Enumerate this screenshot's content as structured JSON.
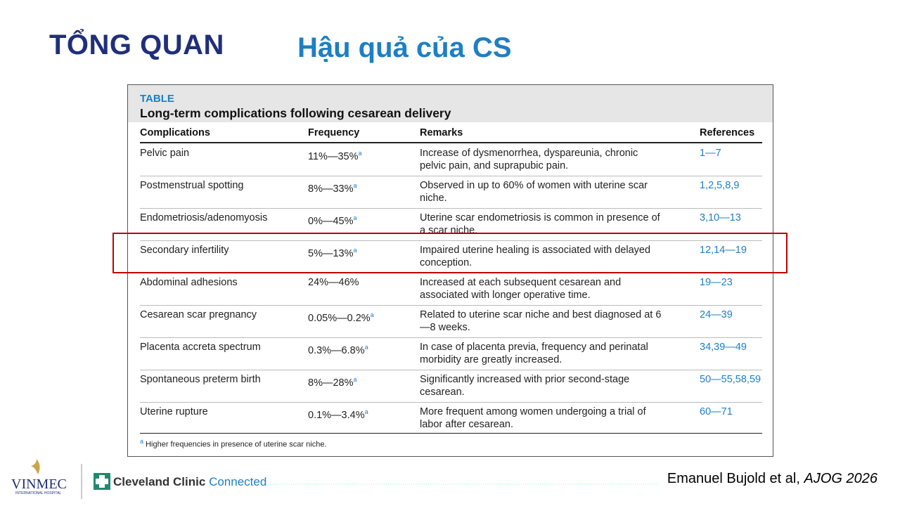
{
  "header": {
    "section": "TỔNG QUAN",
    "title": "Hậu quả của CS"
  },
  "table": {
    "label": "TABLE",
    "caption": "Long-term complications following cesarean delivery",
    "columns": [
      "Complications",
      "Frequency",
      "Remarks",
      "References"
    ],
    "rows": [
      {
        "complication": "Pelvic pain",
        "frequency": "11%—35%",
        "note": "a",
        "remarks": "Increase of dysmenorrhea, dyspareunia, chronic pelvic pain, and suprapubic pain.",
        "references": "1—7"
      },
      {
        "complication": "Postmenstrual spotting",
        "frequency": "8%—33%",
        "note": "a",
        "remarks": "Observed in up to 60% of women with uterine scar niche.",
        "references": "1,2,5,8,9"
      },
      {
        "complication": "Endometriosis/adenomyosis",
        "frequency": "0%—45%",
        "note": "a",
        "remarks": "Uterine scar endometriosis is common in presence of a scar niche.",
        "references": "3,10—13"
      },
      {
        "complication": "Secondary infertility",
        "frequency": "5%—13%",
        "note": "a",
        "remarks": "Impaired uterine healing is associated with delayed conception.",
        "references": "12,14—19"
      },
      {
        "complication": "Abdominal adhesions",
        "frequency": "24%—46%",
        "remarks": "Increased at each subsequent cesarean and associated with longer operative time.",
        "references": "19—23"
      },
      {
        "complication": "Cesarean scar pregnancy",
        "frequency": "0.05%—0.2%",
        "note": "a",
        "remarks": "Related to uterine scar niche and best diagnosed at 6—8 weeks.",
        "references": "24—39"
      },
      {
        "complication": "Placenta accreta spectrum",
        "frequency": "0.3%—6.8%",
        "note": "a",
        "remarks": "In case of placenta previa, frequency and perinatal morbidity are greatly increased.",
        "references": "34,39—49"
      },
      {
        "complication": "Spontaneous preterm birth",
        "frequency": "8%—28%",
        "note": "a",
        "remarks": "Significantly increased with prior second-stage cesarean.",
        "references": "50—55,58,59"
      },
      {
        "complication": "Uterine rupture",
        "frequency": "0.1%—3.4%",
        "note": "a",
        "remarks": "More frequent among women undergoing a trial of labor after cesarean.",
        "references": "60—71"
      }
    ],
    "footnote": {
      "mark": "a",
      "text": "Higher frequencies in presence of uterine scar niche."
    }
  },
  "footer": {
    "logo1": "VINMEC",
    "logo1_sub": "INTERNATIONAL HOSPITAL",
    "logo2": "Cleveland Clinic",
    "logo2_suffix": "Connected",
    "citation": "Emanuel Bujold et al,",
    "journal": "AJOG 2026"
  }
}
